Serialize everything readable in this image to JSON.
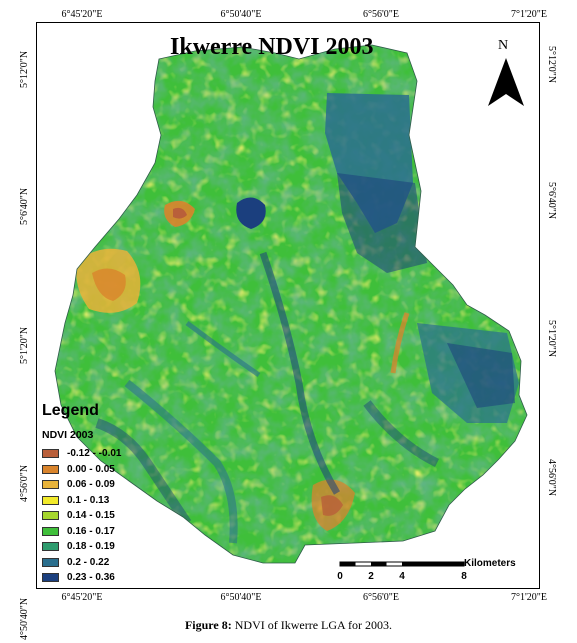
{
  "map": {
    "title": "Ikwerre NDVI 2003",
    "north_label": "N",
    "top_ticks": [
      "6°45'20\"E",
      "6°50'40\"E",
      "6°56'0\"E",
      "7°1'20\"E"
    ],
    "bottom_ticks": [
      "6°45'20\"E",
      "6°50'40\"E",
      "6°56'0\"E",
      "7°1'20\"E"
    ],
    "left_ticks": [
      "5°12'0\"N",
      "5°6'40\"N",
      "5°1'20\"N",
      "4°56'0\"N",
      "4°50'40\"N"
    ],
    "right_ticks": [
      "5°12'0\"N",
      "5°6'40\"N",
      "5°1'20\"N",
      "4°56'0\"N"
    ]
  },
  "legend": {
    "title": "Legend",
    "subtitle": "NDVI 2003",
    "items": [
      {
        "label": "-0.12 - -0.01",
        "color": "#b95f3a"
      },
      {
        "label": "0.00 - 0.05",
        "color": "#d9842c"
      },
      {
        "label": "0.06 - 0.09",
        "color": "#e8b33a"
      },
      {
        "label": "0.1 - 0.13",
        "color": "#f2ea2a"
      },
      {
        "label": "0.14 - 0.15",
        "color": "#a6d62e"
      },
      {
        "label": "0.16 - 0.17",
        "color": "#3fbf3a"
      },
      {
        "label": "0.18 - 0.19",
        "color": "#2e9b6e"
      },
      {
        "label": "0.2 - 0.22",
        "color": "#2a6f8e"
      },
      {
        "label": "0.23 - 0.36",
        "color": "#1b3f7e"
      }
    ]
  },
  "scale": {
    "unit": "Kilometers",
    "ticks": [
      "0",
      "2",
      "4",
      "8"
    ]
  },
  "caption": {
    "label": "Figure 8:",
    "text": " NDVI of Ikwerre LGA for 2003."
  }
}
